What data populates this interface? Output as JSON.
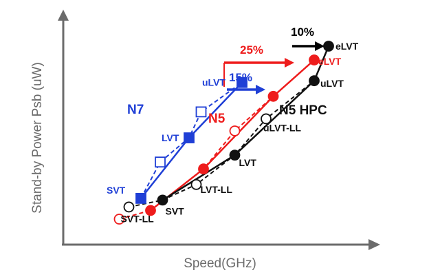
{
  "chart_data": {
    "type": "line",
    "xlabel": "Speed(GHz)",
    "ylabel": "Stand-by Power Psb (uW)",
    "grid": false,
    "legend": "none",
    "series": [
      {
        "name": "N7",
        "color": "#1f3fd6",
        "marker": "square",
        "points": [
          {
            "label": "SVT",
            "x": 0.22,
            "y": 0.12,
            "filled": true
          },
          {
            "label": "",
            "x": 0.3,
            "y": 0.33,
            "filled": false
          },
          {
            "label": "LVT",
            "x": 0.42,
            "y": 0.47,
            "filled": true
          },
          {
            "label": "",
            "x": 0.47,
            "y": 0.62,
            "filled": false
          },
          {
            "label": "uLVT",
            "x": 0.64,
            "y": 0.79,
            "filled": true
          }
        ]
      },
      {
        "name": "N5",
        "color": "#ee1c1c",
        "marker": "circle",
        "points": [
          {
            "label": "",
            "x": 0.13,
            "y": 0.0,
            "filled": false
          },
          {
            "label": "",
            "x": 0.26,
            "y": 0.05,
            "filled": true
          },
          {
            "label": "",
            "x": 0.48,
            "y": 0.29,
            "filled": true
          },
          {
            "label": "",
            "x": 0.61,
            "y": 0.51,
            "filled": false
          },
          {
            "label": "",
            "x": 0.77,
            "y": 0.71,
            "filled": true
          },
          {
            "label": "eLVT",
            "x": 0.94,
            "y": 0.92,
            "filled": true
          }
        ]
      },
      {
        "name": "N5 HPC",
        "color": "#111111",
        "marker": "circle",
        "points": [
          {
            "label": "SVT-LL",
            "x": 0.17,
            "y": 0.07,
            "filled": false
          },
          {
            "label": "SVT",
            "x": 0.31,
            "y": 0.11,
            "filled": true
          },
          {
            "label": "LVT-LL",
            "x": 0.45,
            "y": 0.2,
            "filled": false
          },
          {
            "label": "LVT",
            "x": 0.61,
            "y": 0.37,
            "filled": true
          },
          {
            "label": "uLVT-LL",
            "x": 0.74,
            "y": 0.58,
            "filled": false
          },
          {
            "label": "uLVT",
            "x": 0.94,
            "y": 0.8,
            "filled": true
          },
          {
            "label": "eLVT",
            "x": 1.0,
            "y": 1.0,
            "filled": true
          }
        ]
      }
    ],
    "annotations": [
      {
        "text": "25%",
        "color": "#ee1c1c"
      },
      {
        "text": "15%",
        "color": "#1f3fd6"
      },
      {
        "text": "10%",
        "color": "#000000"
      }
    ]
  }
}
